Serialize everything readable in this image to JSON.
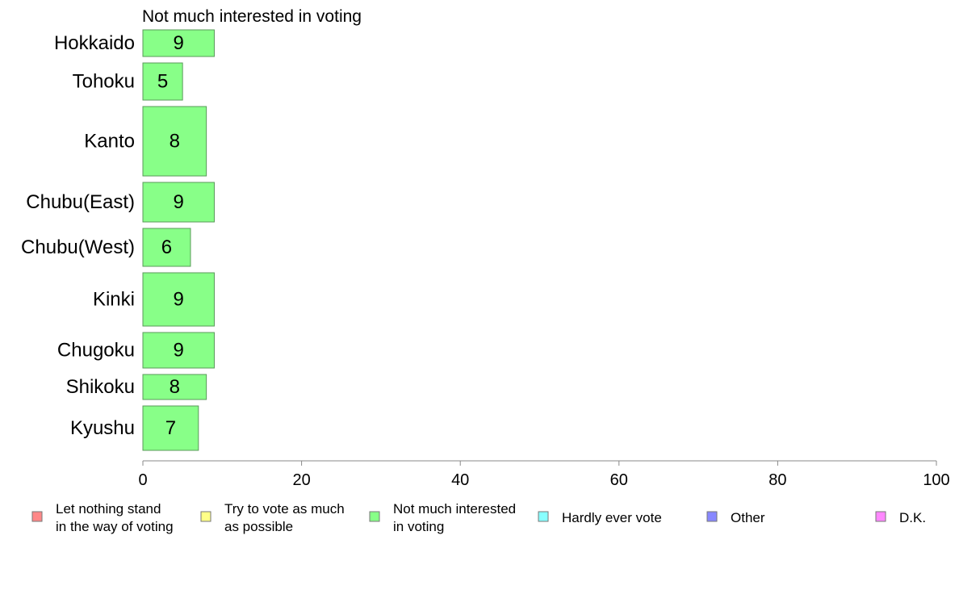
{
  "chart_data": {
    "type": "bar",
    "orientation": "horizontal",
    "title": "Not much interested in voting",
    "categories": [
      "Hokkaido",
      "Tohoku",
      "Kanto",
      "Chubu(East)",
      "Chubu(West)",
      "Kinki",
      "Chugoku",
      "Shikoku",
      "Kyushu"
    ],
    "values": [
      9,
      5,
      8,
      9,
      6,
      9,
      9,
      8,
      7
    ],
    "display_values": [
      "9",
      "5",
      "8",
      "9",
      "6",
      "9",
      "9",
      "8",
      "7"
    ],
    "xlim": [
      0,
      100
    ],
    "xticks": [
      0,
      20,
      40,
      60,
      80,
      100
    ],
    "grid": false,
    "bar_color": "#88ff88",
    "bar_stroke": "#5a9a5a",
    "legend_position": "bottom",
    "legend": [
      {
        "lines": [
          "Let nothing stand",
          "in the way of voting"
        ],
        "color": "#ff8888"
      },
      {
        "lines": [
          "Try to vote as much",
          "as possible"
        ],
        "color": "#ffff88"
      },
      {
        "lines": [
          "Not much interested",
          "in voting"
        ],
        "color": "#88ff88"
      },
      {
        "lines": [
          "Hardly ever vote"
        ],
        "color": "#88ffff"
      },
      {
        "lines": [
          "Other"
        ],
        "color": "#8888ff"
      },
      {
        "lines": [
          "D.K."
        ],
        "color": "#ff88ff"
      }
    ]
  }
}
